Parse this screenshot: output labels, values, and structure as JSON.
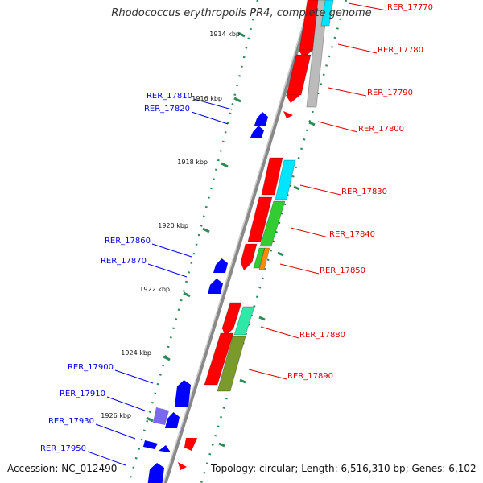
{
  "title": "Rhodococcus erythropolis PR4, complete genome",
  "footer": {
    "accession": "Accession: NC_012490",
    "topology": "Topology: circular; Length: 6,516,310 bp; Genes: 6,102"
  },
  "colors": {
    "forward_gene": "#ff0000",
    "reverse_gene": "#0000ff",
    "backbone": "#888888",
    "tick": "#2e8b57",
    "cyan": "#00e5ff",
    "green": "#32cd32",
    "orange": "#ff8c00",
    "aqua_green": "#2ee8a8",
    "olive": "#7a9a2a",
    "light_gray": "#bbbbbb",
    "purple": "#7b68ee"
  },
  "ticks": [
    {
      "label": "1914 kbp"
    },
    {
      "label": "1916 kbp"
    },
    {
      "label": "1918 kbp"
    },
    {
      "label": "1920 kbp"
    },
    {
      "label": "1922 kbp"
    },
    {
      "label": "1924 kbp"
    },
    {
      "label": "1926 kbp"
    }
  ],
  "genes_left": [
    {
      "name": "RER_17810"
    },
    {
      "name": "RER_17820"
    },
    {
      "name": "RER_17860"
    },
    {
      "name": "RER_17870"
    },
    {
      "name": "RER_17900"
    },
    {
      "name": "RER_17910"
    },
    {
      "name": "RER_17930"
    },
    {
      "name": "RER_17950"
    }
  ],
  "genes_right": [
    {
      "name": "RER_17770"
    },
    {
      "name": "RER_17780"
    },
    {
      "name": "RER_17790"
    },
    {
      "name": "RER_17800"
    },
    {
      "name": "RER_17830"
    },
    {
      "name": "RER_17840"
    },
    {
      "name": "RER_17850"
    },
    {
      "name": "RER_17880"
    },
    {
      "name": "RER_17890"
    }
  ]
}
